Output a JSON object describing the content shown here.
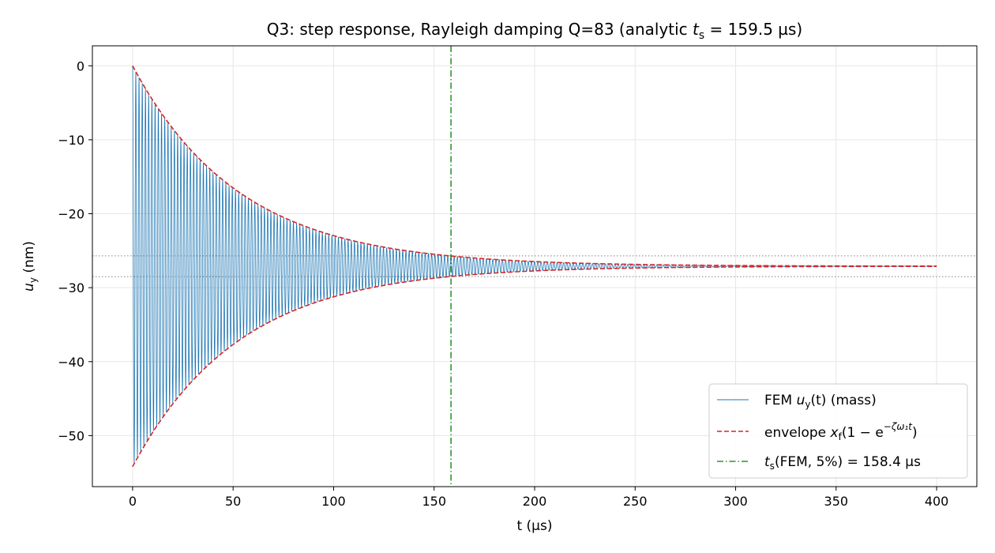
{
  "chart_data": {
    "type": "line",
    "title_prefix": "Q3: step response, Rayleigh damping Q=83 (analytic ",
    "title_var": "t",
    "title_sub": "s",
    "title_suffix": " = 159.5 µs)",
    "xlabel": "t (µs)",
    "ylabel_var": "u",
    "ylabel_sub": "y",
    "ylabel_unit": " (nm)",
    "xlim": [
      -20,
      420
    ],
    "ylim": [
      -56.9,
      2.7
    ],
    "xticks": [
      0,
      50,
      100,
      150,
      200,
      250,
      300,
      350,
      400
    ],
    "yticks": [
      0,
      -10,
      -20,
      -30,
      -40,
      -50
    ],
    "xtick_labels": [
      "0",
      "50",
      "100",
      "150",
      "200",
      "250",
      "300",
      "350",
      "400"
    ],
    "ytick_labels": [
      "0",
      "−10",
      "−20",
      "−30",
      "−40",
      "−50"
    ],
    "grid": true,
    "legend_position": "lower-right",
    "final_value": -27.1,
    "initial_amplitude": 27.1,
    "time_constant_us": 53.2,
    "t_end_us": 400,
    "oscillation_period_us": 1.6,
    "settling_time_us": 158.4,
    "band_lines": [
      -25.7,
      -28.5
    ],
    "series": [
      {
        "name": "FEM u_y(t) (mass)",
        "legend_prefix": "FEM ",
        "legend_var": "u",
        "legend_sub": "y",
        "legend_suffix": "(t) (mass)",
        "kind": "oscillation",
        "color": "#1f77b4"
      },
      {
        "name": "envelope x_f(1 − e^{−ζω1t})",
        "legend_prefix": "envelope ",
        "legend_var": "x",
        "legend_sub": "f",
        "legend_mid": "(1 − e",
        "legend_sup": "−ζω₁t",
        "legend_suffix": ")",
        "kind": "envelope",
        "color": "#d62728"
      },
      {
        "name": "t_s(FEM, 5%) = 158.4 µs",
        "legend_var": "t",
        "legend_sub": "s",
        "legend_suffix": "(FEM, 5%) = 158.4 µs",
        "kind": "vline",
        "color": "#008000"
      }
    ]
  }
}
